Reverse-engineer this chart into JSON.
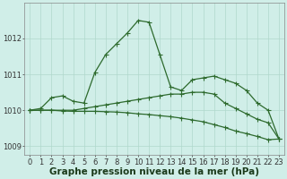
{
  "xlabel": "Graphe pression niveau de la mer (hPa)",
  "hours": [
    0,
    1,
    2,
    3,
    4,
    5,
    6,
    7,
    8,
    9,
    10,
    11,
    12,
    13,
    14,
    15,
    16,
    17,
    18,
    19,
    20,
    21,
    22,
    23
  ],
  "line1": [
    1010.0,
    1010.05,
    1010.35,
    1010.4,
    1010.25,
    1010.2,
    1011.05,
    1011.55,
    1011.85,
    1012.15,
    1012.5,
    1012.45,
    1011.55,
    1010.65,
    1010.55,
    1010.85,
    1010.9,
    1010.95,
    1010.85,
    1010.75,
    1010.55,
    1010.2,
    1010.0,
    1009.2
  ],
  "line2": [
    1010.0,
    1010.0,
    1010.0,
    1010.0,
    1010.0,
    1010.05,
    1010.1,
    1010.15,
    1010.2,
    1010.25,
    1010.3,
    1010.35,
    1010.4,
    1010.45,
    1010.45,
    1010.5,
    1010.5,
    1010.45,
    1010.2,
    1010.05,
    1009.9,
    1009.75,
    1009.65,
    1009.2
  ],
  "line3": [
    1010.0,
    1010.0,
    1010.0,
    1009.98,
    1009.97,
    1009.97,
    1009.97,
    1009.96,
    1009.95,
    1009.93,
    1009.9,
    1009.88,
    1009.85,
    1009.82,
    1009.78,
    1009.73,
    1009.68,
    1009.6,
    1009.52,
    1009.42,
    1009.35,
    1009.27,
    1009.18,
    1009.2
  ],
  "line_color": "#2d6a2d",
  "bg_color": "#d0eee8",
  "grid_color": "#b0d8cc",
  "ylim_min": 1008.75,
  "ylim_max": 1013.0,
  "yticks": [
    1009,
    1010,
    1011,
    1012
  ],
  "tick_fontsize": 6,
  "label_fontsize": 7.5
}
